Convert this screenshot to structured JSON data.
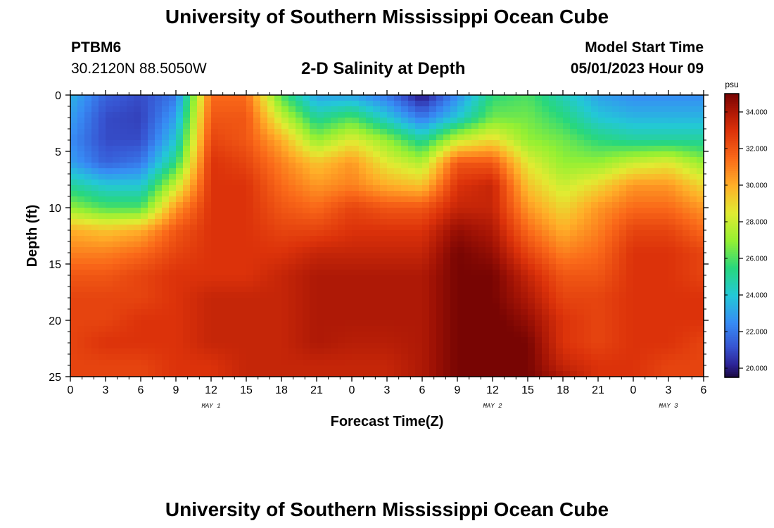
{
  "header": {
    "title": "University of Southern Mississippi Ocean Cube",
    "station": "PTBM6",
    "coords": "30.2120N  88.5050W",
    "plot_title": "2-D Salinity at Depth",
    "model_label": "Model Start Time",
    "model_datetime": "05/01/2023 Hour 09"
  },
  "footer": {
    "title": "University of Southern Mississippi Ocean Cube"
  },
  "chart_data": {
    "type": "heatmap",
    "title": "2-D Salinity at Depth",
    "xlabel": "Forecast Time(Z)",
    "ylabel": "Depth (ft)",
    "x_tick_labels": [
      "0",
      "3",
      "6",
      "9",
      "12",
      "15",
      "18",
      "21",
      "0",
      "3",
      "6",
      "9",
      "12",
      "15",
      "18",
      "21",
      "0",
      "3",
      "6"
    ],
    "x_range_hours": [
      0,
      54
    ],
    "day_labels": [
      {
        "label": "MAY 1",
        "hour": 12
      },
      {
        "label": "MAY 2",
        "hour": 36
      },
      {
        "label": "MAY 3",
        "hour": 51
      }
    ],
    "y_ticks": [
      0,
      5,
      10,
      15,
      20,
      25
    ],
    "y_range": [
      0,
      25
    ],
    "colorbar": {
      "unit": "psu",
      "range": [
        19.5,
        35
      ],
      "tick_labels": [
        "20.000",
        "22.000",
        "24.000",
        "26.000",
        "28.000",
        "30.000",
        "32.000",
        "34.000"
      ],
      "tick_values": [
        20,
        22,
        24,
        26,
        28,
        30,
        32,
        34
      ]
    },
    "grid_hours": [
      0,
      3,
      6,
      9,
      12,
      15,
      18,
      21,
      24,
      27,
      30,
      33,
      36,
      39,
      42,
      45,
      48,
      51,
      54
    ],
    "grid_depths": [
      0,
      2,
      4,
      6,
      8,
      10,
      12,
      14,
      16,
      18,
      20,
      22,
      24,
      25
    ],
    "salinity": [
      [
        23.5,
        21.5,
        21.0,
        22.0,
        31.5,
        31.5,
        26.0,
        23.0,
        23.0,
        22.0,
        19.8,
        22.5,
        25.5,
        26.0,
        24.5,
        23.0,
        22.5,
        22.5,
        22.5
      ],
      [
        23.0,
        21.0,
        20.8,
        23.0,
        32.0,
        32.0,
        28.0,
        25.0,
        26.0,
        24.0,
        22.0,
        24.0,
        26.5,
        26.5,
        25.5,
        24.0,
        23.5,
        23.5,
        23.5
      ],
      [
        22.5,
        21.0,
        21.0,
        24.0,
        32.5,
        32.0,
        30.0,
        27.0,
        28.5,
        27.0,
        25.0,
        28.0,
        29.0,
        27.0,
        26.5,
        25.5,
        25.0,
        25.0,
        25.0
      ],
      [
        23.0,
        21.5,
        22.0,
        25.5,
        33.0,
        32.5,
        31.0,
        29.5,
        30.5,
        28.5,
        27.5,
        32.0,
        32.0,
        28.5,
        27.0,
        27.0,
        28.0,
        28.5,
        27.0
      ],
      [
        25.0,
        24.0,
        24.0,
        28.0,
        33.0,
        33.0,
        31.5,
        30.5,
        31.0,
        30.0,
        29.5,
        33.0,
        33.5,
        29.5,
        28.0,
        29.0,
        30.5,
        30.5,
        29.0
      ],
      [
        27.0,
        26.0,
        26.0,
        30.5,
        33.0,
        33.0,
        32.0,
        31.5,
        32.5,
        32.0,
        32.0,
        33.5,
        33.5,
        30.5,
        29.0,
        30.5,
        31.5,
        31.5,
        30.5
      ],
      [
        30.0,
        29.5,
        30.0,
        32.0,
        33.0,
        33.0,
        32.5,
        32.5,
        33.0,
        33.0,
        33.0,
        34.5,
        34.0,
        31.5,
        30.0,
        31.0,
        32.5,
        32.5,
        31.5
      ],
      [
        31.0,
        31.0,
        31.5,
        32.5,
        33.0,
        33.0,
        33.0,
        33.5,
        33.5,
        33.5,
        33.5,
        35.0,
        34.5,
        32.5,
        31.0,
        31.5,
        33.0,
        33.0,
        32.5
      ],
      [
        32.0,
        32.0,
        32.5,
        33.0,
        33.0,
        33.0,
        33.5,
        34.0,
        34.0,
        34.0,
        34.0,
        35.0,
        35.0,
        33.5,
        32.0,
        32.0,
        33.0,
        33.0,
        32.5
      ],
      [
        32.5,
        32.5,
        32.5,
        33.0,
        33.5,
        33.5,
        33.5,
        34.0,
        34.0,
        34.0,
        34.0,
        35.0,
        35.0,
        34.0,
        32.5,
        32.5,
        33.0,
        33.0,
        33.0
      ],
      [
        32.5,
        32.5,
        33.0,
        33.0,
        33.5,
        33.5,
        33.5,
        34.0,
        34.0,
        34.0,
        34.0,
        35.0,
        35.2,
        34.5,
        33.0,
        32.5,
        33.0,
        33.0,
        33.0
      ],
      [
        32.5,
        33.0,
        33.0,
        33.0,
        33.5,
        33.5,
        33.5,
        34.0,
        33.8,
        33.8,
        34.0,
        35.0,
        35.3,
        35.0,
        33.0,
        32.5,
        33.0,
        33.0,
        32.5
      ],
      [
        32.5,
        32.5,
        32.5,
        33.0,
        33.0,
        33.5,
        33.5,
        33.5,
        33.5,
        33.5,
        34.0,
        35.0,
        35.3,
        35.0,
        33.5,
        33.0,
        33.0,
        32.5,
        32.5
      ],
      [
        32.5,
        32.5,
        32.5,
        33.0,
        33.0,
        33.5,
        33.5,
        33.5,
        33.5,
        33.5,
        34.0,
        35.0,
        35.3,
        35.0,
        34.0,
        33.0,
        33.0,
        32.5,
        32.5
      ]
    ]
  }
}
